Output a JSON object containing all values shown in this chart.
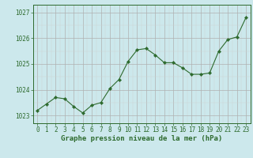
{
  "x": [
    0,
    1,
    2,
    3,
    4,
    5,
    6,
    7,
    8,
    9,
    10,
    11,
    12,
    13,
    14,
    15,
    16,
    17,
    18,
    19,
    20,
    21,
    22,
    23
  ],
  "y": [
    1023.2,
    1023.45,
    1023.7,
    1023.65,
    1023.35,
    1023.1,
    1023.4,
    1023.5,
    1024.05,
    1024.4,
    1025.1,
    1025.55,
    1025.6,
    1025.35,
    1025.05,
    1025.05,
    1024.85,
    1024.6,
    1024.6,
    1024.65,
    1025.5,
    1025.95,
    1026.05,
    1026.8
  ],
  "line_color": "#2d6a2d",
  "marker": "D",
  "marker_size": 2.2,
  "bg_color": "#cce8ec",
  "grid_color_major": "#b0b0b0",
  "grid_color_minor": "#d0d0d0",
  "xlabel": "Graphe pression niveau de la mer (hPa)",
  "xlabel_color": "#2d6a2d",
  "yticks": [
    1023,
    1024,
    1025,
    1026,
    1027
  ],
  "xticks": [
    0,
    1,
    2,
    3,
    4,
    5,
    6,
    7,
    8,
    9,
    10,
    11,
    12,
    13,
    14,
    15,
    16,
    17,
    18,
    19,
    20,
    21,
    22,
    23
  ],
  "ylim": [
    1022.7,
    1027.3
  ],
  "xlim": [
    -0.5,
    23.5
  ],
  "tick_color": "#2d6a2d",
  "spine_color": "#2d6a2d",
  "font_size_tick": 5.5,
  "font_size_label": 6.5
}
